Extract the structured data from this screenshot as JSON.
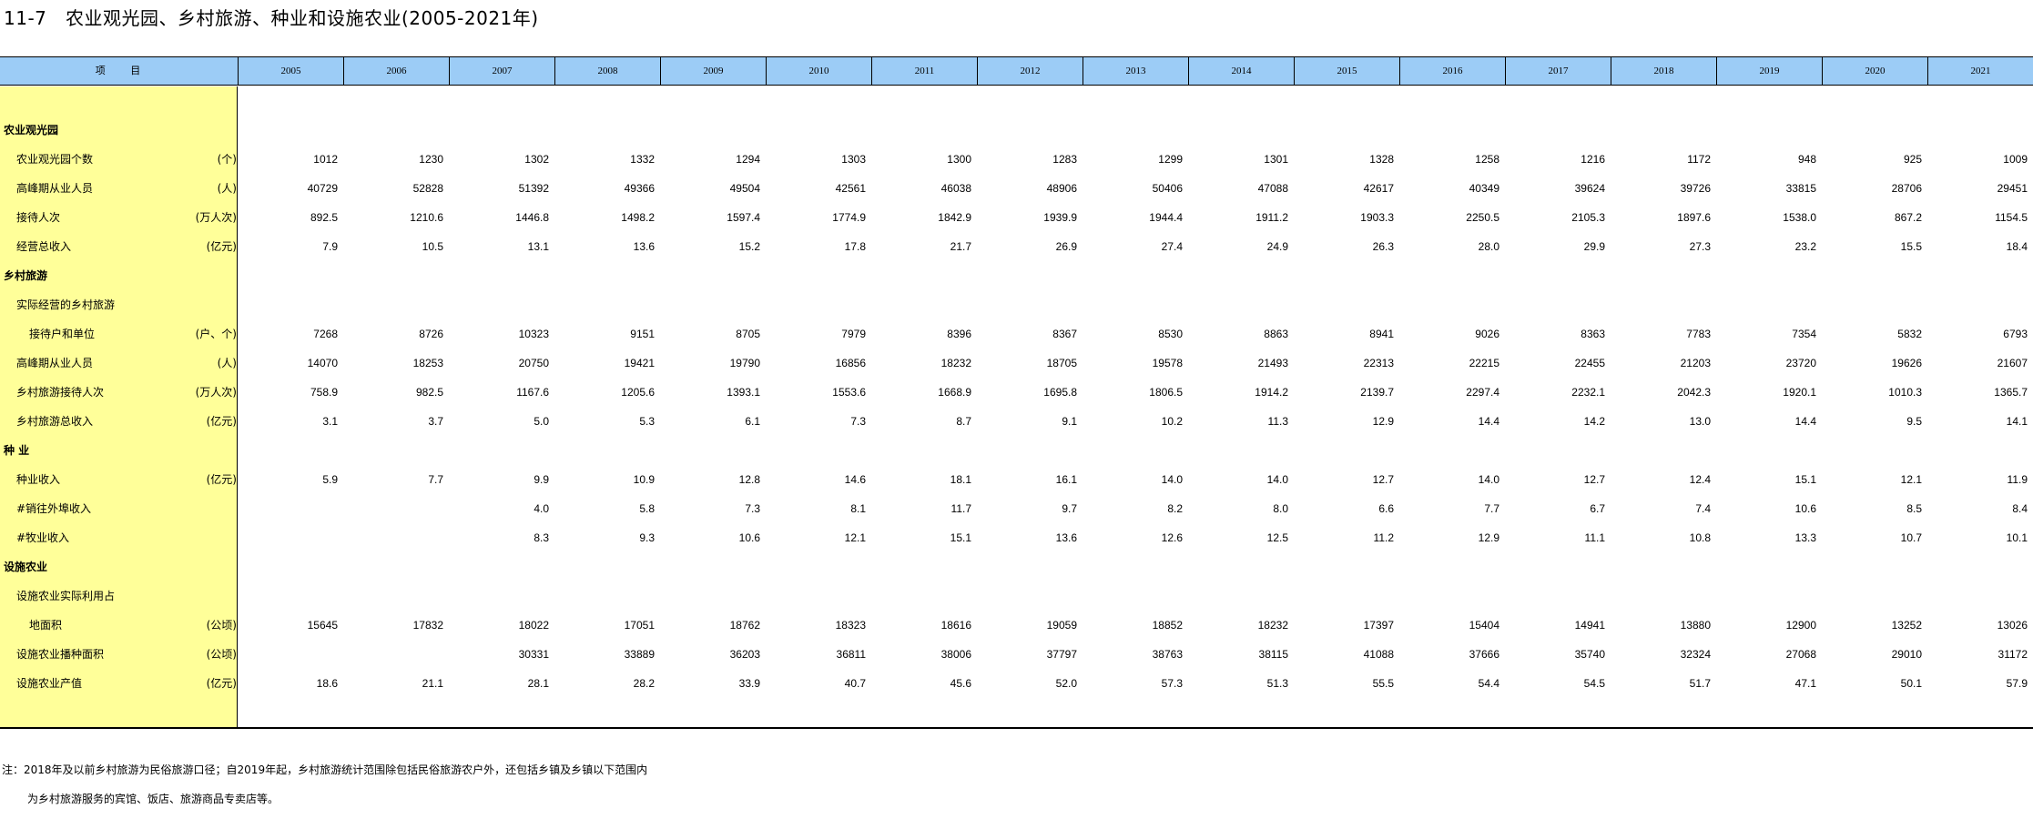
{
  "title": "11-7   农业观光园、乡村旅游、种业和设施农业(2005-2021年)",
  "header": {
    "item_label": "项 目",
    "years": [
      "2005",
      "2006",
      "2007",
      "2008",
      "2009",
      "2010",
      "2011",
      "2012",
      "2013",
      "2014",
      "2015",
      "2016",
      "2017",
      "2018",
      "2019",
      "2020",
      "2021"
    ]
  },
  "rows": [
    {
      "type": "cat",
      "label": "农业观光园",
      "unit": "",
      "values": []
    },
    {
      "type": "l1",
      "label": "农业观光园个数",
      "unit": "(个)",
      "values": [
        "1012",
        "1230",
        "1302",
        "1332",
        "1294",
        "1303",
        "1300",
        "1283",
        "1299",
        "1301",
        "1328",
        "1258",
        "1216",
        "1172",
        "948",
        "925",
        "1009"
      ]
    },
    {
      "type": "l1",
      "label": "高峰期从业人员",
      "unit": "(人)",
      "values": [
        "40729",
        "52828",
        "51392",
        "49366",
        "49504",
        "42561",
        "46038",
        "48906",
        "50406",
        "47088",
        "42617",
        "40349",
        "39624",
        "39726",
        "33815",
        "28706",
        "29451"
      ]
    },
    {
      "type": "l1",
      "label": "接待人次",
      "unit": "(万人次)",
      "values": [
        "892.5",
        "1210.6",
        "1446.8",
        "1498.2",
        "1597.4",
        "1774.9",
        "1842.9",
        "1939.9",
        "1944.4",
        "1911.2",
        "1903.3",
        "2250.5",
        "2105.3",
        "1897.6",
        "1538.0",
        "867.2",
        "1154.5"
      ]
    },
    {
      "type": "l1",
      "label": "经营总收入",
      "unit": "(亿元)",
      "values": [
        "7.9",
        "10.5",
        "13.1",
        "13.6",
        "15.2",
        "17.8",
        "21.7",
        "26.9",
        "27.4",
        "24.9",
        "26.3",
        "28.0",
        "29.9",
        "27.3",
        "23.2",
        "15.5",
        "18.4"
      ]
    },
    {
      "type": "cat",
      "label": "乡村旅游",
      "unit": "",
      "values": []
    },
    {
      "type": "l1",
      "label": "实际经营的乡村旅游",
      "unit": "",
      "values": []
    },
    {
      "type": "l2",
      "label": "接待户和单位",
      "unit": "(户、个)",
      "values": [
        "7268",
        "8726",
        "10323",
        "9151",
        "8705",
        "7979",
        "8396",
        "8367",
        "8530",
        "8863",
        "8941",
        "9026",
        "8363",
        "7783",
        "7354",
        "5832",
        "6793"
      ]
    },
    {
      "type": "l1",
      "label": "高峰期从业人员",
      "unit": "(人)",
      "values": [
        "14070",
        "18253",
        "20750",
        "19421",
        "19790",
        "16856",
        "18232",
        "18705",
        "19578",
        "21493",
        "22313",
        "22215",
        "22455",
        "21203",
        "23720",
        "19626",
        "21607"
      ]
    },
    {
      "type": "l1",
      "label": "乡村旅游接待人次",
      "unit": "(万人次)",
      "values": [
        "758.9",
        "982.5",
        "1167.6",
        "1205.6",
        "1393.1",
        "1553.6",
        "1668.9",
        "1695.8",
        "1806.5",
        "1914.2",
        "2139.7",
        "2297.4",
        "2232.1",
        "2042.3",
        "1920.1",
        "1010.3",
        "1365.7"
      ]
    },
    {
      "type": "l1",
      "label": "乡村旅游总收入",
      "unit": "(亿元)",
      "values": [
        "3.1",
        "3.7",
        "5.0",
        "5.3",
        "6.1",
        "7.3",
        "8.7",
        "9.1",
        "10.2",
        "11.3",
        "12.9",
        "14.4",
        "14.2",
        "13.0",
        "14.4",
        "9.5",
        "14.1"
      ]
    },
    {
      "type": "cat",
      "label": "种    业",
      "unit": "",
      "values": []
    },
    {
      "type": "l1",
      "label": "种业收入",
      "unit": "(亿元)",
      "values": [
        "5.9",
        "7.7",
        "9.9",
        "10.9",
        "12.8",
        "14.6",
        "18.1",
        "16.1",
        "14.0",
        "14.0",
        "12.7",
        "14.0",
        "12.7",
        "12.4",
        "15.1",
        "12.1",
        "11.9"
      ]
    },
    {
      "type": "l1",
      "label": " #销往外埠收入",
      "unit": "",
      "values": [
        "",
        "",
        "4.0",
        "5.8",
        "7.3",
        "8.1",
        "11.7",
        "9.7",
        "8.2",
        "8.0",
        "6.6",
        "7.7",
        "6.7",
        "7.4",
        "10.6",
        "8.5",
        "8.4"
      ]
    },
    {
      "type": "l1",
      "label": " #牧业收入",
      "unit": "",
      "values": [
        "",
        "",
        "8.3",
        "9.3",
        "10.6",
        "12.1",
        "15.1",
        "13.6",
        "12.6",
        "12.5",
        "11.2",
        "12.9",
        "11.1",
        "10.8",
        "13.3",
        "10.7",
        "10.1"
      ]
    },
    {
      "type": "cat",
      "label": "设施农业",
      "unit": "",
      "values": []
    },
    {
      "type": "l1",
      "label": "设施农业实际利用占",
      "unit": "",
      "values": []
    },
    {
      "type": "l2",
      "label": "地面积",
      "unit": "(公顷)",
      "values": [
        "15645",
        "17832",
        "18022",
        "17051",
        "18762",
        "18323",
        "18616",
        "19059",
        "18852",
        "18232",
        "17397",
        "15404",
        "14941",
        "13880",
        "12900",
        "13252",
        "13026"
      ]
    },
    {
      "type": "l1",
      "label": "设施农业播种面积",
      "unit": "(公顷)",
      "values": [
        "",
        "",
        "30331",
        "33889",
        "36203",
        "36811",
        "38006",
        "37797",
        "38763",
        "38115",
        "41088",
        "37666",
        "35740",
        "32324",
        "27068",
        "29010",
        "31172"
      ]
    },
    {
      "type": "l1",
      "label": "设施农业产值",
      "unit": "(亿元)",
      "values": [
        "18.6",
        "21.1",
        "28.1",
        "28.2",
        "33.9",
        "40.7",
        "45.6",
        "52.0",
        "57.3",
        "51.3",
        "55.5",
        "54.4",
        "54.5",
        "51.7",
        "47.1",
        "50.1",
        "57.9"
      ]
    }
  ],
  "notes": [
    "注：2018年及以前乡村旅游为民俗旅游口径；自2019年起，乡村旅游统计范围除包括民俗旅游农户外，还包括乡镇及乡镇以下范围内",
    "为乡村旅游服务的宾馆、饭店、旅游商品专卖店等。"
  ]
}
